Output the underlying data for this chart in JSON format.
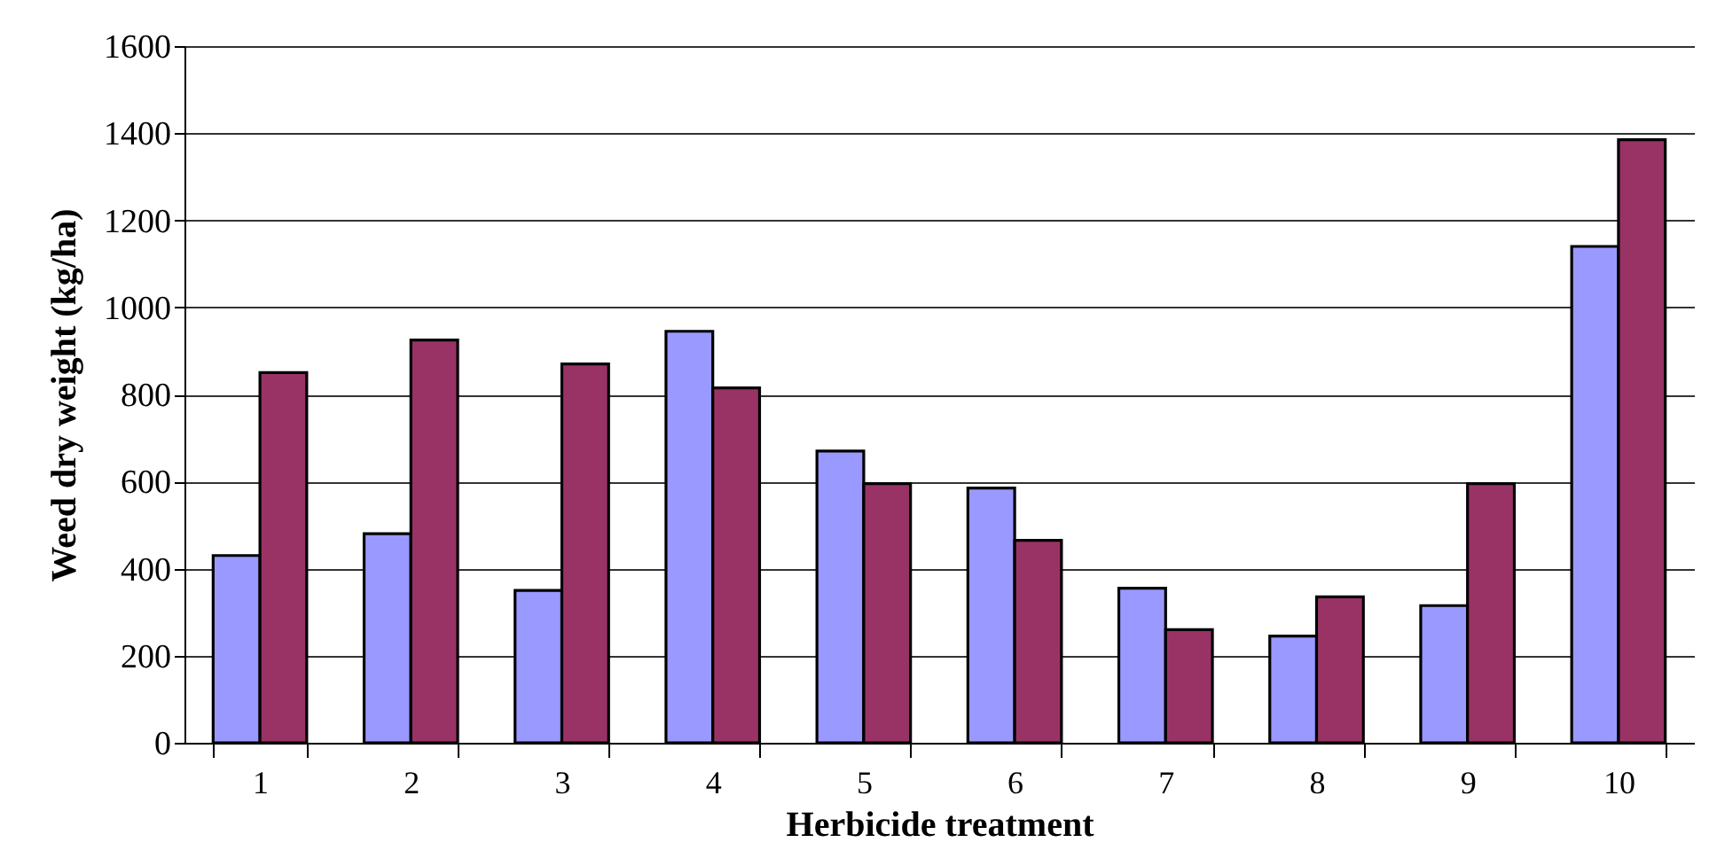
{
  "chart_data": {
    "type": "bar",
    "xlabel": "Herbicide treatment",
    "ylabel": "Weed dry weight (kg/ha)",
    "categories": [
      "1",
      "2",
      "3",
      "4",
      "5",
      "6",
      "7",
      "8",
      "9",
      "10"
    ],
    "series": [
      {
        "color": "#9999ff",
        "values": [
          430,
          480,
          350,
          945,
          670,
          585,
          355,
          245,
          315,
          1140
        ]
      },
      {
        "color": "#993366",
        "values": [
          850,
          925,
          870,
          815,
          595,
          465,
          260,
          335,
          595,
          1385
        ]
      }
    ],
    "ylim": [
      0,
      1600
    ],
    "yticks": [
      0,
      200,
      400,
      600,
      800,
      1000,
      1200,
      1400,
      1600
    ],
    "grid": "y",
    "legend": false
  }
}
